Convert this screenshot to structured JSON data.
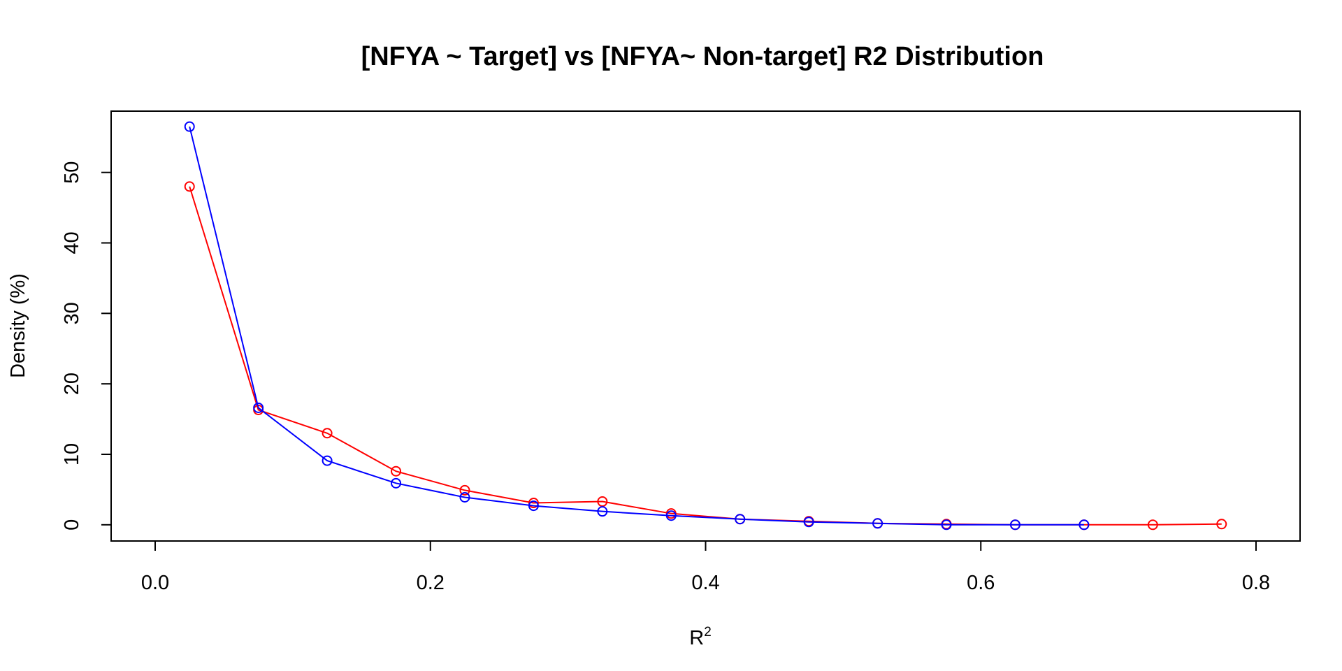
{
  "chart_data": {
    "type": "line",
    "title": "[NFYA ~ Target] vs [NFYA~ Non-target] R2 Distribution",
    "xlabel_base": "R",
    "xlabel_superscript": "2",
    "ylabel": "Density (%)",
    "xlim": [
      -0.032,
      0.832
    ],
    "ylim": [
      -2.3,
      58.7
    ],
    "x_ticks": [
      0.0,
      0.2,
      0.4,
      0.6,
      0.8
    ],
    "x_tick_labels": [
      "0.0",
      "0.2",
      "0.4",
      "0.6",
      "0.8"
    ],
    "y_ticks": [
      0,
      10,
      20,
      30,
      40,
      50
    ],
    "y_tick_labels": [
      "0",
      "10",
      "20",
      "30",
      "40",
      "50"
    ],
    "grid": false,
    "legend": "none",
    "marker": "open-circle",
    "series": [
      {
        "color": "#ff0000",
        "x": [
          0.025,
          0.075,
          0.125,
          0.175,
          0.225,
          0.275,
          0.325,
          0.375,
          0.425,
          0.475,
          0.525,
          0.575,
          0.625,
          0.675,
          0.725,
          0.775
        ],
        "y": [
          48.0,
          16.3,
          13.0,
          7.6,
          4.9,
          3.1,
          3.3,
          1.6,
          0.8,
          0.5,
          0.2,
          0.1,
          0.0,
          0.0,
          0.0,
          0.1
        ]
      },
      {
        "color": "#0000ff",
        "x": [
          0.025,
          0.075,
          0.125,
          0.175,
          0.225,
          0.275,
          0.325,
          0.375,
          0.425,
          0.475,
          0.525,
          0.575,
          0.625,
          0.675
        ],
        "y": [
          56.5,
          16.6,
          9.1,
          5.9,
          3.9,
          2.7,
          1.9,
          1.3,
          0.8,
          0.4,
          0.2,
          0.0,
          0.0,
          0.0
        ]
      }
    ]
  }
}
